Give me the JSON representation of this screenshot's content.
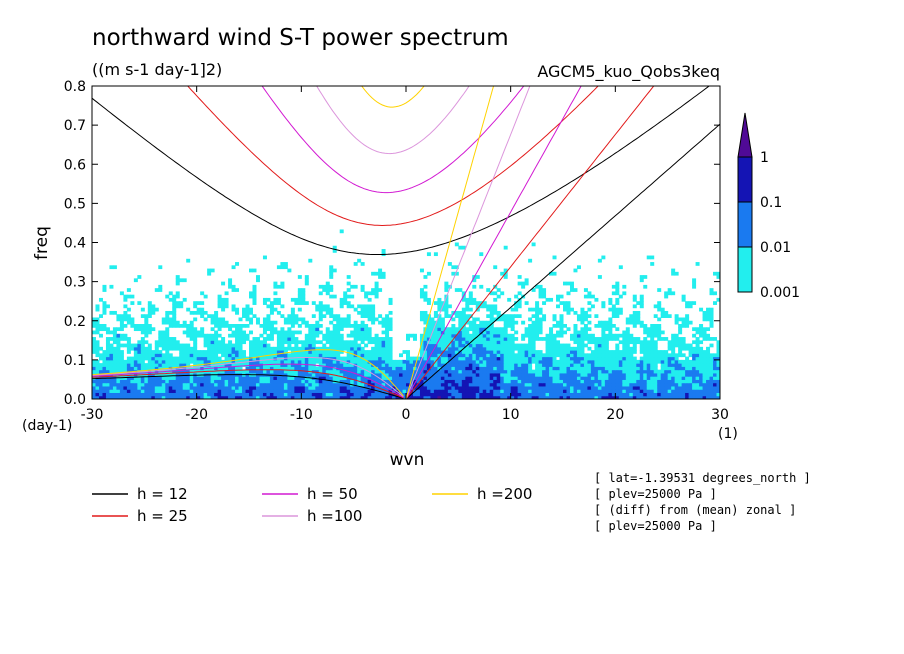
{
  "chart_data": {
    "type": "heatmap",
    "title": "northward wind S-T power spectrum",
    "units": "((m s-1 day-1]2)",
    "model": "AGCM5_kuo_Qobs3keq",
    "xlabel": "wvn",
    "ylabel": "freq",
    "x_unit": "(1)",
    "y_unit": "(day-1)",
    "xlim": [
      -30,
      30
    ],
    "ylim": [
      0,
      0.8
    ],
    "x_ticks": [
      "-30",
      "-20",
      "-10",
      "0",
      "10",
      "20",
      "30"
    ],
    "x_tick_values": [
      -30,
      -20,
      -10,
      0,
      10,
      20,
      30
    ],
    "y_ticks": [
      "0.0",
      "0.1",
      "0.2",
      "0.3",
      "0.4",
      "0.5",
      "0.6",
      "0.7",
      "0.8"
    ],
    "y_tick_values": [
      0,
      0.1,
      0.2,
      0.3,
      0.4,
      0.5,
      0.6,
      0.7,
      0.8
    ],
    "colorbar": {
      "levels": [
        "0.001",
        "0.01",
        "0.1",
        "1"
      ],
      "level_values": [
        0.001,
        0.01,
        0.1,
        1
      ],
      "colors": [
        "#22eeee",
        "#1a7af0",
        "#1414b4",
        "#500a96"
      ]
    },
    "dispersion_curves": [
      {
        "label": "h = 12",
        "h": 12,
        "color": "#000000"
      },
      {
        "label": "h = 25",
        "h": 25,
        "color": "#e21a1a"
      },
      {
        "label": "h = 50",
        "h": 50,
        "color": "#d21ad2"
      },
      {
        "label": "h =100",
        "h": 100,
        "color": "#dc96dc"
      },
      {
        "label": "h =200",
        "h": 200,
        "color": "#ffd200"
      }
    ],
    "annotations": [
      "[ lat=-1.39531 degrees_north ]",
      "[ plev=25000 Pa ]",
      "[ (diff) from (mean) zonal ]",
      "[ plev=25000 Pa ]"
    ]
  }
}
